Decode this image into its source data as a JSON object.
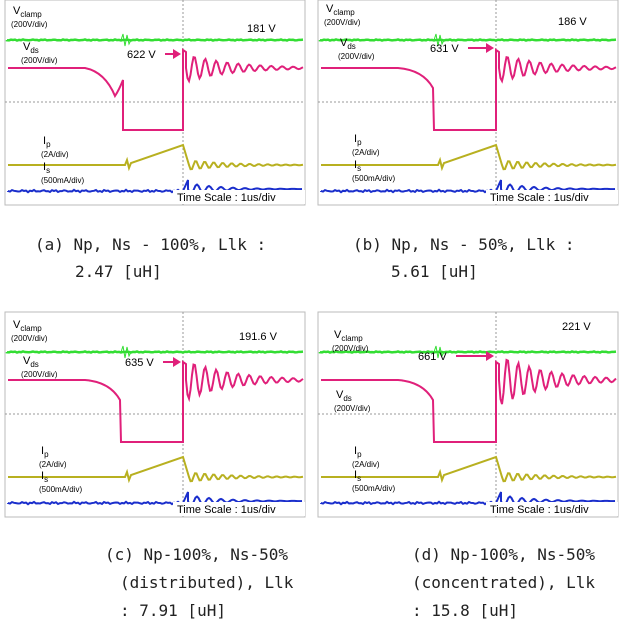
{
  "panels": [
    {
      "channels": [
        {
          "main": "V",
          "sub": "clamp",
          "scale": "(200V/div)"
        },
        {
          "main": "V",
          "sub": "ds",
          "scale": "(200V/div)"
        },
        {
          "main": "I",
          "sub": "p",
          "scale": "(2A/div)"
        },
        {
          "main": "I",
          "sub": "s",
          "scale": "(500mA/div)"
        }
      ],
      "peak": "622 V",
      "clamp_level": "181 V",
      "time_scale": "Time Scale : 1us/div",
      "caption": [
        "(a) Np, Ns - 100%, Llk :",
        "2.47 [uH]"
      ]
    },
    {
      "channels": [
        {
          "main": "V",
          "sub": "clamp",
          "scale": "(200V/div)"
        },
        {
          "main": "V",
          "sub": "ds",
          "scale": "(200V/div)"
        },
        {
          "main": "I",
          "sub": "p",
          "scale": "(2A/div)"
        },
        {
          "main": "I",
          "sub": "s",
          "scale": "(500mA/div)"
        }
      ],
      "peak": "631 V",
      "clamp_level": "186 V",
      "time_scale": "Time Scale : 1us/div",
      "caption": [
        "(b) Np, Ns - 50%, Llk :",
        "5.61 [uH]"
      ]
    },
    {
      "channels": [
        {
          "main": "V",
          "sub": "clamp",
          "scale": "(200V/div)"
        },
        {
          "main": "V",
          "sub": "ds",
          "scale": "(200V/div)"
        },
        {
          "main": "I",
          "sub": "p",
          "scale": "(2A/div)"
        },
        {
          "main": "I",
          "sub": "s",
          "scale": "(500mA/div)"
        }
      ],
      "peak": "635 V",
      "clamp_level": "191.6 V",
      "time_scale": "Time Scale : 1us/div",
      "caption": [
        "(c) Np-100%, Ns-50%",
        "(distributed), Llk",
        ": 7.91 [uH]"
      ]
    },
    {
      "channels": [
        {
          "main": "V",
          "sub": "clamp",
          "scale": "(200V/div)"
        },
        {
          "main": "V",
          "sub": "ds",
          "scale": "(200V/div)"
        },
        {
          "main": "I",
          "sub": "p",
          "scale": "(2A/div)"
        },
        {
          "main": "I",
          "sub": "s",
          "scale": "(500mA/div)"
        }
      ],
      "peak": "661 V",
      "clamp_level": "221 V",
      "time_scale": "Time Scale : 1us/div",
      "caption": [
        "(d) Np-100%, Ns-50%",
        "(concentrated), Llk",
        ": 15.8 [uH]"
      ]
    }
  ]
}
